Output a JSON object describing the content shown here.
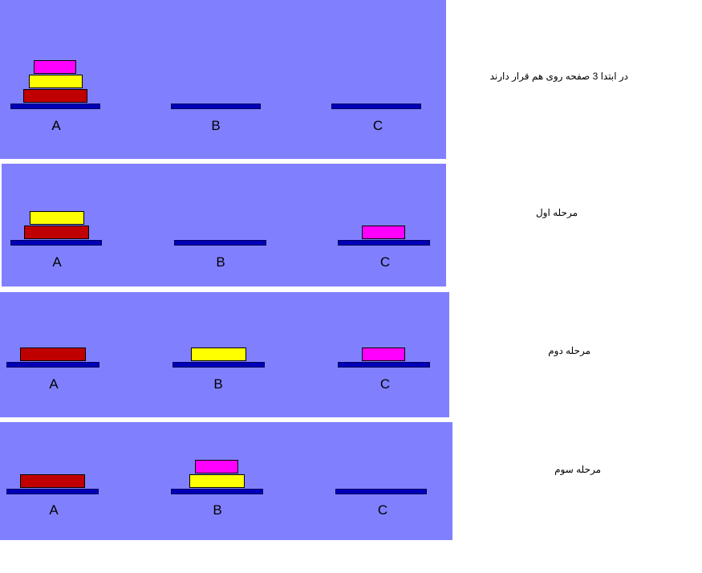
{
  "colors": {
    "panel_background": "#8080ff",
    "base": "#0000b8",
    "disk_large": "#c00000",
    "disk_medium": "#ffff00",
    "disk_small": "#ff00ff"
  },
  "stages": [
    {
      "caption": "در ابتدا 3 صفحه روی هم قرار دارند",
      "pegs": [
        {
          "label": "A",
          "disks": [
            "large",
            "medium",
            "small"
          ]
        },
        {
          "label": "B",
          "disks": []
        },
        {
          "label": "C",
          "disks": []
        }
      ]
    },
    {
      "caption": "مرحله اول",
      "pegs": [
        {
          "label": "A",
          "disks": [
            "large",
            "medium"
          ]
        },
        {
          "label": "B",
          "disks": []
        },
        {
          "label": "C",
          "disks": [
            "small"
          ]
        }
      ]
    },
    {
      "caption": "مرحله دوم",
      "pegs": [
        {
          "label": "A",
          "disks": [
            "large"
          ]
        },
        {
          "label": "B",
          "disks": [
            "medium"
          ]
        },
        {
          "label": "C",
          "disks": [
            "small"
          ]
        }
      ]
    },
    {
      "caption": "مرحله سوم",
      "pegs": [
        {
          "label": "A",
          "disks": [
            "large"
          ]
        },
        {
          "label": "B",
          "disks": [
            "medium",
            "small"
          ]
        },
        {
          "label": "C",
          "disks": []
        }
      ]
    }
  ]
}
